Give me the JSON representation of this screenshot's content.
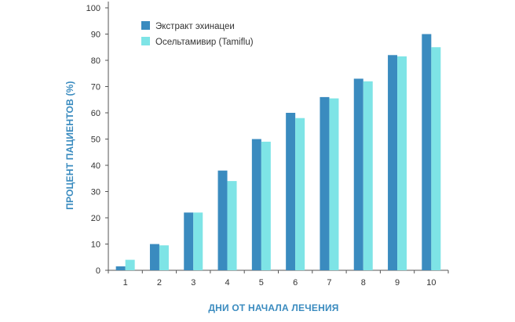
{
  "chart_data": {
    "type": "bar",
    "title": "",
    "xlabel": "ДНИ ОТ НАЧАЛА ЛЕЧЕНИЯ",
    "ylabel": "ПРОЦЕНТ ПАЦИЕНТОВ (%)",
    "ylim": [
      0,
      100
    ],
    "yticks": [
      0,
      10,
      20,
      30,
      40,
      50,
      60,
      70,
      80,
      90,
      100
    ],
    "categories": [
      "1",
      "2",
      "3",
      "4",
      "5",
      "6",
      "7",
      "8",
      "9",
      "10"
    ],
    "series": [
      {
        "name": "Экстракт эхинацеи",
        "color": "#3a8bbf",
        "values": [
          1.5,
          10,
          22,
          38,
          50,
          60,
          66,
          73,
          82,
          90
        ]
      },
      {
        "name": "Осельтамивир (Tamiflu)",
        "color": "#7ee4e6",
        "values": [
          4,
          9.5,
          22,
          34,
          49,
          58,
          65.5,
          72,
          81.5,
          85
        ]
      }
    ],
    "legend_position": "top-left",
    "grid": false
  }
}
